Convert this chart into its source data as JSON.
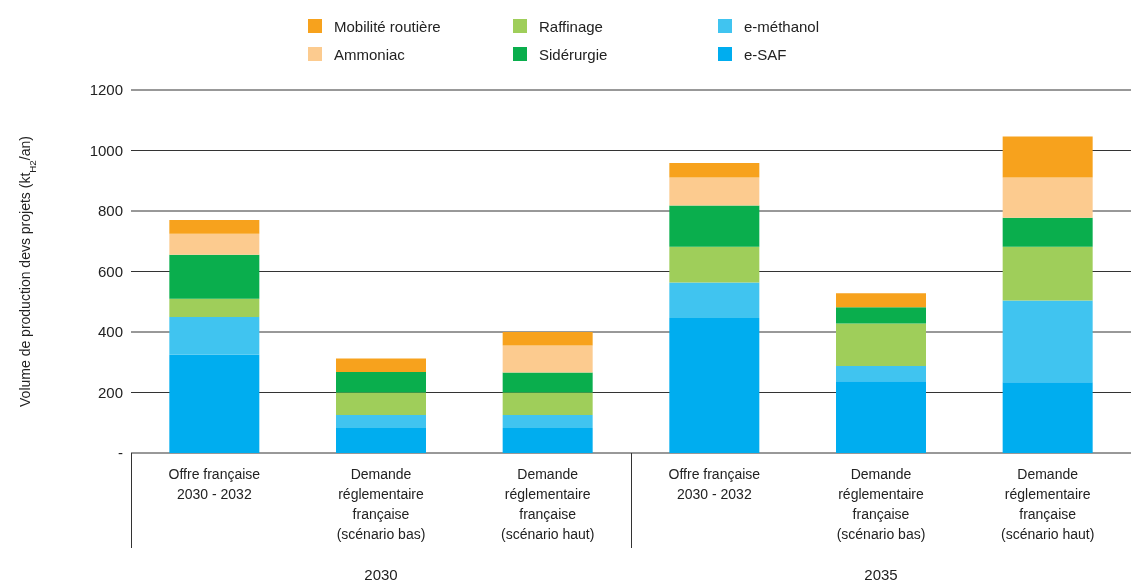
{
  "chart_data": {
    "type": "bar",
    "stacked": true,
    "ylabel": "Volume de production devs projets (kt$_{H2}$/an)",
    "categories": [
      "Offre française\n2030 - 2032",
      "Demande\nréglementaire\nfrançaise\n(scénario bas)",
      "Demande\nréglementaire\nfrançaise\n(scénario haut)",
      "Offre française\n2030 - 2032",
      "Demande\nréglementaire\nfrançaise\n(scénario bas)",
      "Demande\nréglementaire\nfrançaise\n(scénario haut)"
    ],
    "annotations": [
      "2030",
      "2035"
    ],
    "series": [
      {
        "name": "e-SAF",
        "color": "#00adef",
        "values": [
          325,
          83,
          83,
          446,
          237,
          234
        ]
      },
      {
        "name": "e-méthanol",
        "color": "#40c4f0",
        "values": [
          125,
          43,
          43,
          118,
          51,
          270
        ]
      },
      {
        "name": "Raffinage",
        "color": "#9fce5a",
        "values": [
          60,
          74,
          74,
          118,
          140,
          178
        ]
      },
      {
        "name": "Sidérurgie",
        "color": "#0aae4d",
        "values": [
          145,
          68,
          66,
          136,
          54,
          96
        ]
      },
      {
        "name": "Ammoniac",
        "color": "#fccb8f",
        "values": [
          70,
          0,
          89,
          93,
          0,
          133
        ]
      },
      {
        "name": "Mobilité routière",
        "color": "#f7a21d",
        "values": [
          45,
          44,
          45,
          48,
          46,
          135
        ]
      }
    ],
    "ylim": [
      0,
      1200
    ],
    "yticks": [
      {
        "value": 0,
        "label": "-"
      },
      200,
      400,
      600,
      800,
      1000,
      1200
    ],
    "grid": "y",
    "legend": "top"
  }
}
